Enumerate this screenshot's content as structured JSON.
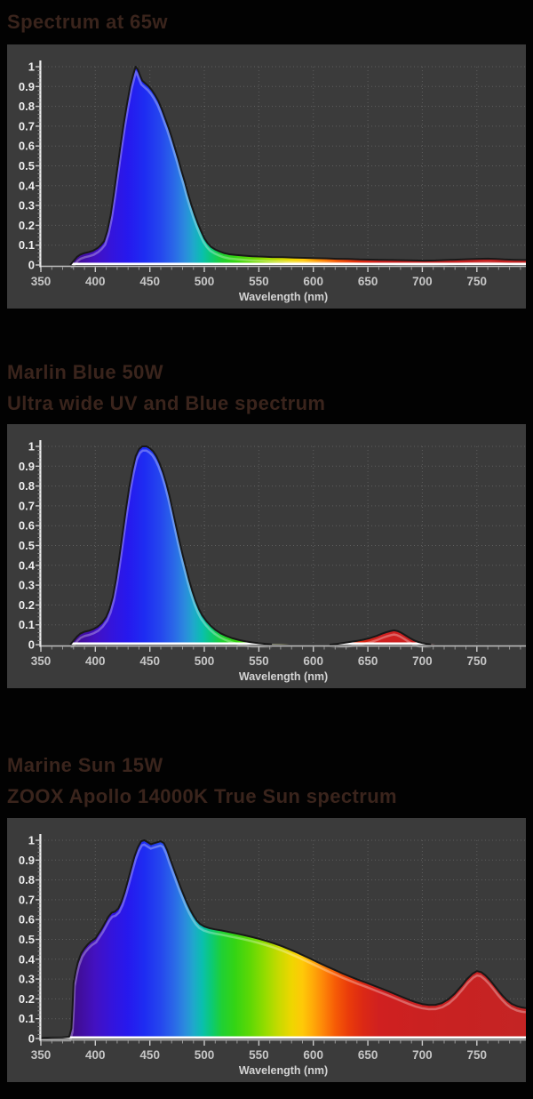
{
  "page": {
    "background": "#020202",
    "title_color": "#3a241c"
  },
  "chart_style": {
    "panel_bg": "#3b3b3b",
    "grid_color": "rgba(255,255,255,0.18)",
    "y_axis_color": "#eeeeee",
    "x_axis_color": "#c0c0c0",
    "under_fill_baseline_color": "#ffffff",
    "major_tick_color": "#cccccc",
    "minor_tick_color": "#9a9a9a",
    "y_label_color": "#ededed",
    "x_label_color": "#c6c6c6",
    "axis_title_color": "#d4d4d4",
    "curve_outline_color": "#181818",
    "curve_highlight_color": "rgba(255,255,255,0.30)"
  },
  "spectrum_gradient": [
    [
      350,
      "#3a0b7e"
    ],
    [
      380,
      "#400d8c"
    ],
    [
      400,
      "#4311c2"
    ],
    [
      415,
      "#3414dc"
    ],
    [
      430,
      "#2619ee"
    ],
    [
      445,
      "#1e2cf2"
    ],
    [
      460,
      "#2547ee"
    ],
    [
      472,
      "#2a68e8"
    ],
    [
      482,
      "#2b8ade"
    ],
    [
      490,
      "#1fa8cc"
    ],
    [
      498,
      "#0abfae"
    ],
    [
      507,
      "#0cca72"
    ],
    [
      516,
      "#20d034"
    ],
    [
      528,
      "#34d414"
    ],
    [
      542,
      "#5ed805"
    ],
    [
      556,
      "#95dc00"
    ],
    [
      568,
      "#c6da00"
    ],
    [
      580,
      "#eed600"
    ],
    [
      590,
      "#fec908"
    ],
    [
      600,
      "#ffa808"
    ],
    [
      610,
      "#fd8208"
    ],
    [
      620,
      "#f65c06"
    ],
    [
      632,
      "#ea3c0a"
    ],
    [
      645,
      "#dc2914"
    ],
    [
      660,
      "#d02020"
    ],
    [
      700,
      "#ca2121"
    ],
    [
      795,
      "#c42424"
    ]
  ],
  "chart_data": [
    {
      "type": "area",
      "title": "Spectrum at 65w",
      "title_lines": [
        "Spectrum at 65w"
      ],
      "xlabel": "Wavelength (nm)",
      "ylabel": "",
      "xlim": [
        350,
        795
      ],
      "ylim": [
        0,
        1
      ],
      "grid": true,
      "legend": "none",
      "x_ticks": [
        350,
        400,
        450,
        500,
        550,
        600,
        650,
        700,
        750
      ],
      "y_ticks": [
        0,
        0.1,
        0.2,
        0.3,
        0.4,
        0.5,
        0.6,
        0.7,
        0.8,
        0.9,
        1
      ],
      "points": [
        [
          377,
          0
        ],
        [
          380,
          0.02
        ],
        [
          383,
          0.04
        ],
        [
          386,
          0.052
        ],
        [
          390,
          0.06
        ],
        [
          394,
          0.065
        ],
        [
          398,
          0.072
        ],
        [
          402,
          0.085
        ],
        [
          405,
          0.1
        ],
        [
          408,
          0.12
        ],
        [
          411,
          0.17
        ],
        [
          414,
          0.25
        ],
        [
          417,
          0.36
        ],
        [
          420,
          0.48
        ],
        [
          423,
          0.6
        ],
        [
          426,
          0.71
        ],
        [
          429,
          0.81
        ],
        [
          432,
          0.9
        ],
        [
          435,
          0.965
        ],
        [
          437,
          1
        ],
        [
          439,
          0.985
        ],
        [
          441,
          0.955
        ],
        [
          443,
          0.93
        ],
        [
          446,
          0.915
        ],
        [
          449,
          0.9
        ],
        [
          452,
          0.88
        ],
        [
          455,
          0.855
        ],
        [
          458,
          0.825
        ],
        [
          461,
          0.785
        ],
        [
          464,
          0.74
        ],
        [
          467,
          0.695
        ],
        [
          470,
          0.645
        ],
        [
          473,
          0.59
        ],
        [
          476,
          0.535
        ],
        [
          479,
          0.475
        ],
        [
          482,
          0.42
        ],
        [
          485,
          0.36
        ],
        [
          488,
          0.305
        ],
        [
          491,
          0.255
        ],
        [
          494,
          0.21
        ],
        [
          497,
          0.17
        ],
        [
          500,
          0.135
        ],
        [
          503,
          0.11
        ],
        [
          506,
          0.092
        ],
        [
          510,
          0.078
        ],
        [
          514,
          0.068
        ],
        [
          518,
          0.06
        ],
        [
          523,
          0.054
        ],
        [
          529,
          0.05
        ],
        [
          536,
          0.047
        ],
        [
          544,
          0.044
        ],
        [
          553,
          0.042
        ],
        [
          562,
          0.04
        ],
        [
          572,
          0.039
        ],
        [
          582,
          0.037
        ],
        [
          592,
          0.036
        ],
        [
          602,
          0.034
        ],
        [
          612,
          0.033
        ],
        [
          622,
          0.031
        ],
        [
          632,
          0.03
        ],
        [
          642,
          0.028
        ],
        [
          652,
          0.027
        ],
        [
          662,
          0.026
        ],
        [
          672,
          0.025
        ],
        [
          682,
          0.024
        ],
        [
          692,
          0.023
        ],
        [
          702,
          0.022
        ],
        [
          712,
          0.023
        ],
        [
          722,
          0.025
        ],
        [
          732,
          0.027
        ],
        [
          742,
          0.029
        ],
        [
          752,
          0.031
        ],
        [
          760,
          0.032
        ],
        [
          768,
          0.03
        ],
        [
          775,
          0.028
        ],
        [
          785,
          0.026
        ],
        [
          795,
          0.025
        ]
      ]
    },
    {
      "type": "area",
      "title": "Marlin Blue 50W — Ultra wide UV and Blue spectrum",
      "title_lines": [
        "Marlin Blue 50W",
        "Ultra wide UV and Blue spectrum"
      ],
      "xlabel": "Wavelength (nm)",
      "ylabel": "",
      "xlim": [
        350,
        795
      ],
      "ylim": [
        0,
        1
      ],
      "grid": true,
      "legend": "none",
      "x_ticks": [
        350,
        400,
        450,
        500,
        550,
        600,
        650,
        700,
        750
      ],
      "y_ticks": [
        0,
        0.1,
        0.2,
        0.3,
        0.4,
        0.5,
        0.6,
        0.7,
        0.8,
        0.9,
        1
      ],
      "points": [
        [
          377,
          0
        ],
        [
          380,
          0.02
        ],
        [
          383,
          0.04
        ],
        [
          386,
          0.055
        ],
        [
          390,
          0.065
        ],
        [
          394,
          0.07
        ],
        [
          398,
          0.078
        ],
        [
          402,
          0.09
        ],
        [
          406,
          0.11
        ],
        [
          410,
          0.14
        ],
        [
          413,
          0.18
        ],
        [
          416,
          0.24
        ],
        [
          419,
          0.33
        ],
        [
          422,
          0.44
        ],
        [
          425,
          0.56
        ],
        [
          428,
          0.68
        ],
        [
          431,
          0.79
        ],
        [
          434,
          0.88
        ],
        [
          437,
          0.95
        ],
        [
          440,
          0.985
        ],
        [
          443,
          1
        ],
        [
          447,
          1
        ],
        [
          450,
          0.99
        ],
        [
          453,
          0.975
        ],
        [
          456,
          0.95
        ],
        [
          459,
          0.915
        ],
        [
          462,
          0.87
        ],
        [
          465,
          0.815
        ],
        [
          468,
          0.75
        ],
        [
          471,
          0.675
        ],
        [
          474,
          0.6
        ],
        [
          477,
          0.525
        ],
        [
          480,
          0.455
        ],
        [
          483,
          0.39
        ],
        [
          486,
          0.325
        ],
        [
          489,
          0.27
        ],
        [
          492,
          0.22
        ],
        [
          495,
          0.18
        ],
        [
          498,
          0.148
        ],
        [
          502,
          0.118
        ],
        [
          506,
          0.094
        ],
        [
          510,
          0.075
        ],
        [
          515,
          0.057
        ],
        [
          520,
          0.044
        ],
        [
          526,
          0.032
        ],
        [
          532,
          0.023
        ],
        [
          538,
          0.016
        ],
        [
          544,
          0.011
        ],
        [
          550,
          0.007
        ],
        [
          556,
          0.004
        ],
        [
          562,
          0.002
        ],
        [
          570,
          0.001
        ],
        [
          578,
          0
        ],
        [
          615,
          0
        ],
        [
          622,
          0.004
        ],
        [
          628,
          0.009
        ],
        [
          634,
          0.014
        ],
        [
          640,
          0.019
        ],
        [
          646,
          0.025
        ],
        [
          652,
          0.033
        ],
        [
          658,
          0.044
        ],
        [
          663,
          0.055
        ],
        [
          667,
          0.063
        ],
        [
          671,
          0.069
        ],
        [
          674,
          0.072
        ],
        [
          677,
          0.069
        ],
        [
          680,
          0.062
        ],
        [
          684,
          0.049
        ],
        [
          688,
          0.035
        ],
        [
          692,
          0.023
        ],
        [
          696,
          0.014
        ],
        [
          700,
          0.008
        ],
        [
          704,
          0.004
        ],
        [
          708,
          0.001
        ],
        [
          712,
          0
        ],
        [
          795,
          0
        ]
      ]
    },
    {
      "type": "area",
      "title": "Marine Sun 15W — ZOOX Apollo 14000K True Sun spectrum",
      "title_lines": [
        "Marine Sun 15W",
        "ZOOX Apollo 14000K True Sun spectrum"
      ],
      "xlabel": "Wavelength (nm)",
      "ylabel": "",
      "xlim": [
        350,
        795
      ],
      "ylim": [
        0,
        1
      ],
      "grid": true,
      "legend": "none",
      "x_ticks": [
        350,
        400,
        450,
        500,
        550,
        600,
        650,
        700,
        750
      ],
      "y_ticks": [
        0,
        0.1,
        0.2,
        0.3,
        0.4,
        0.5,
        0.6,
        0.7,
        0.8,
        0.9,
        1
      ],
      "points": [
        [
          350,
          0
        ],
        [
          352,
          0.004
        ],
        [
          360,
          0.005
        ],
        [
          370,
          0.006
        ],
        [
          376,
          0.009
        ],
        [
          378,
          0.05
        ],
        [
          379,
          0.15
        ],
        [
          380,
          0.28
        ],
        [
          382,
          0.34
        ],
        [
          384,
          0.385
        ],
        [
          387,
          0.43
        ],
        [
          390,
          0.455
        ],
        [
          393,
          0.475
        ],
        [
          396,
          0.49
        ],
        [
          400,
          0.505
        ],
        [
          403,
          0.53
        ],
        [
          406,
          0.555
        ],
        [
          409,
          0.585
        ],
        [
          412,
          0.615
        ],
        [
          415,
          0.635
        ],
        [
          418,
          0.64
        ],
        [
          421,
          0.655
        ],
        [
          424,
          0.69
        ],
        [
          427,
          0.74
        ],
        [
          430,
          0.8
        ],
        [
          433,
          0.86
        ],
        [
          436,
          0.92
        ],
        [
          439,
          0.965
        ],
        [
          442,
          0.995
        ],
        [
          445,
          1
        ],
        [
          448,
          0.99
        ],
        [
          451,
          0.98
        ],
        [
          454,
          0.985
        ],
        [
          457,
          0.99
        ],
        [
          460,
          0.995
        ],
        [
          463,
          0.985
        ],
        [
          466,
          0.95
        ],
        [
          469,
          0.9
        ],
        [
          472,
          0.855
        ],
        [
          475,
          0.81
        ],
        [
          478,
          0.765
        ],
        [
          481,
          0.725
        ],
        [
          484,
          0.685
        ],
        [
          487,
          0.65
        ],
        [
          490,
          0.62
        ],
        [
          493,
          0.595
        ],
        [
          496,
          0.578
        ],
        [
          500,
          0.565
        ],
        [
          505,
          0.556
        ],
        [
          510,
          0.55
        ],
        [
          516,
          0.545
        ],
        [
          522,
          0.538
        ],
        [
          529,
          0.53
        ],
        [
          536,
          0.522
        ],
        [
          543,
          0.513
        ],
        [
          550,
          0.503
        ],
        [
          557,
          0.492
        ],
        [
          564,
          0.48
        ],
        [
          571,
          0.466
        ],
        [
          578,
          0.45
        ],
        [
          585,
          0.434
        ],
        [
          592,
          0.416
        ],
        [
          599,
          0.398
        ],
        [
          606,
          0.38
        ],
        [
          613,
          0.362
        ],
        [
          620,
          0.345
        ],
        [
          627,
          0.328
        ],
        [
          634,
          0.312
        ],
        [
          641,
          0.297
        ],
        [
          648,
          0.283
        ],
        [
          655,
          0.268
        ],
        [
          662,
          0.253
        ],
        [
          669,
          0.238
        ],
        [
          676,
          0.222
        ],
        [
          682,
          0.208
        ],
        [
          688,
          0.195
        ],
        [
          694,
          0.183
        ],
        [
          700,
          0.174
        ],
        [
          706,
          0.169
        ],
        [
          712,
          0.17
        ],
        [
          718,
          0.179
        ],
        [
          724,
          0.198
        ],
        [
          730,
          0.228
        ],
        [
          736,
          0.266
        ],
        [
          741,
          0.3
        ],
        [
          746,
          0.327
        ],
        [
          750,
          0.34
        ],
        [
          754,
          0.335
        ],
        [
          758,
          0.318
        ],
        [
          762,
          0.295
        ],
        [
          766,
          0.268
        ],
        [
          770,
          0.24
        ],
        [
          774,
          0.214
        ],
        [
          778,
          0.192
        ],
        [
          782,
          0.175
        ],
        [
          787,
          0.163
        ],
        [
          791,
          0.157
        ],
        [
          795,
          0.154
        ]
      ]
    }
  ]
}
